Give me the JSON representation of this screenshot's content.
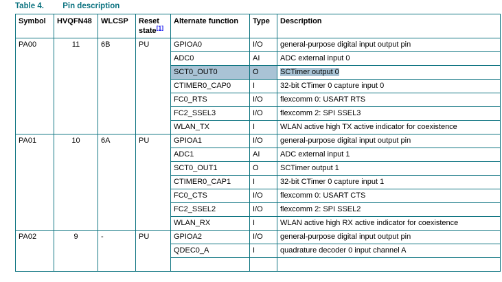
{
  "title": {
    "label": "Table 4.",
    "caption": "Pin description"
  },
  "colors": {
    "accent_teal": "#0c7380",
    "selection_highlight": "#a9c3d5",
    "link_blue": "#1212ee"
  },
  "table": {
    "columns": [
      "Symbol",
      "HVQFN48",
      "WLCSP",
      "Reset state",
      "Alternate function",
      "Type",
      "Description"
    ],
    "reset_state_note": "[1]",
    "pins": [
      {
        "symbol": "PA00",
        "hvqfn48": "11",
        "wlcsp": "6B",
        "reset_state": "PU",
        "partial_row_below": false,
        "functions": [
          {
            "name": "GPIOA0",
            "type": "I/O",
            "description": "general-purpose digital input output pin",
            "highlighted": false
          },
          {
            "name": "ADC0",
            "type": "AI",
            "description": "ADC external input 0",
            "highlighted": false
          },
          {
            "name": "SCT0_OUT0",
            "type": "O",
            "description": "SCTimer output 0",
            "highlighted": true
          },
          {
            "name": "CTIMER0_CAP0",
            "type": "I",
            "description": "32-bit CTimer 0 capture input 0",
            "highlighted": false
          },
          {
            "name": "FC0_RTS",
            "type": "I/O",
            "description": "flexcomm 0: USART RTS",
            "highlighted": false
          },
          {
            "name": "FC2_SSEL3",
            "type": "I/O",
            "description": "flexcomm 2: SPI SSEL3",
            "highlighted": false
          },
          {
            "name": "WLAN_TX",
            "type": "I",
            "description": "WLAN active high TX active indicator for coexistence",
            "highlighted": false
          }
        ]
      },
      {
        "symbol": "PA01",
        "hvqfn48": "10",
        "wlcsp": "6A",
        "reset_state": "PU",
        "partial_row_below": false,
        "functions": [
          {
            "name": "GPIOA1",
            "type": "I/O",
            "description": "general-purpose digital input output pin",
            "highlighted": false
          },
          {
            "name": "ADC1",
            "type": "AI",
            "description": "ADC external input 1",
            "highlighted": false
          },
          {
            "name": "SCT0_OUT1",
            "type": "O",
            "description": "SCTimer output 1",
            "highlighted": false
          },
          {
            "name": "CTIMER0_CAP1",
            "type": "I",
            "description": "32-bit CTimer 0 capture input 1",
            "highlighted": false
          },
          {
            "name": "FC0_CTS",
            "type": "I/O",
            "description": "flexcomm 0: USART CTS",
            "highlighted": false
          },
          {
            "name": "FC2_SSEL2",
            "type": "I/O",
            "description": "flexcomm 2: SPI SSEL2",
            "highlighted": false
          },
          {
            "name": "WLAN_RX",
            "type": "I",
            "description": "WLAN active high RX active indicator for coexistence",
            "highlighted": false
          }
        ]
      },
      {
        "symbol": "PA02",
        "hvqfn48": "9",
        "wlcsp": "-",
        "reset_state": "PU",
        "partial_row_below": true,
        "functions": [
          {
            "name": "GPIOA2",
            "type": "I/O",
            "description": "general-purpose digital input output pin",
            "highlighted": false
          },
          {
            "name": "QDEC0_A",
            "type": "I",
            "description": "quadrature decoder 0 input channel A",
            "highlighted": false
          }
        ]
      }
    ]
  }
}
